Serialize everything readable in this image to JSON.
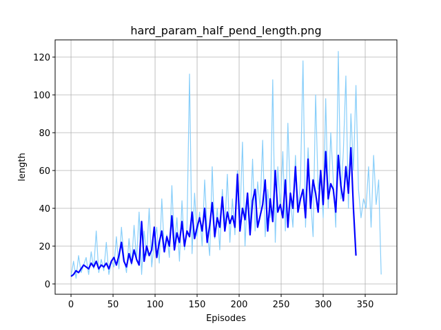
{
  "chart_data": {
    "type": "line",
    "title": "hard_param_half_pend_length.png",
    "x_label": "Episodes",
    "y_label": "length",
    "xlim": [
      -18.9,
      387.7
    ],
    "ylim": [
      -5.45,
      129.1
    ],
    "xticks": [
      0,
      50,
      100,
      150,
      200,
      250,
      300,
      350
    ],
    "yticks": [
      0,
      20,
      40,
      60,
      80,
      100,
      120
    ],
    "grid": true,
    "series": [
      {
        "color": "#87cefa",
        "width": 1.2,
        "x": [
          0,
          3,
          6,
          9,
          12,
          15,
          18,
          21,
          24,
          27,
          30,
          33,
          36,
          39,
          42,
          45,
          48,
          51,
          54,
          57,
          60,
          63,
          66,
          69,
          72,
          75,
          78,
          81,
          84,
          87,
          90,
          93,
          96,
          99,
          102,
          105,
          108,
          111,
          114,
          117,
          120,
          123,
          126,
          129,
          132,
          135,
          138,
          141,
          144,
          147,
          150,
          153,
          156,
          159,
          162,
          165,
          168,
          171,
          174,
          177,
          180,
          183,
          186,
          189,
          192,
          195,
          198,
          201,
          204,
          207,
          210,
          213,
          216,
          219,
          222,
          225,
          228,
          231,
          234,
          237,
          240,
          243,
          246,
          249,
          252,
          255,
          258,
          261,
          264,
          267,
          270,
          273,
          276,
          279,
          282,
          285,
          288,
          291,
          294,
          297,
          300,
          303,
          306,
          309,
          312,
          315,
          318,
          321,
          324,
          327,
          330,
          333,
          336,
          339,
          342,
          345,
          348,
          351,
          354,
          357,
          360,
          363,
          366,
          369
        ],
        "values": [
          4,
          12,
          3,
          15,
          6,
          10,
          14,
          5,
          17,
          8,
          28,
          6,
          13,
          7,
          22,
          5,
          12,
          9,
          25,
          8,
          30,
          14,
          6,
          24,
          10,
          31,
          12,
          38,
          5,
          28,
          15,
          40,
          9,
          22,
          30,
          11,
          45,
          18,
          26,
          14,
          52,
          20,
          35,
          12,
          44,
          18,
          30,
          111,
          16,
          48,
          25,
          38,
          20,
          55,
          28,
          15,
          62,
          24,
          40,
          18,
          50,
          30,
          58,
          22,
          45,
          26,
          60,
          35,
          75,
          20,
          48,
          30,
          66,
          28,
          54,
          40,
          76,
          25,
          50,
          35,
          108,
          22,
          62,
          40,
          70,
          28,
          85,
          45,
          30,
          68,
          38,
          55,
          118,
          30,
          72,
          45,
          25,
          100,
          50,
          60,
          35,
          98,
          40,
          80,
          55,
          30,
          123,
          45,
          70,
          110,
          40,
          90,
          60,
          105,
          50,
          35,
          45,
          40,
          62,
          30,
          68,
          42,
          55,
          5
        ]
      },
      {
        "color": "#0000ff",
        "width": 2.2,
        "x": [
          0,
          3,
          6,
          9,
          12,
          15,
          18,
          21,
          24,
          27,
          30,
          33,
          36,
          39,
          42,
          45,
          48,
          51,
          54,
          57,
          60,
          63,
          66,
          69,
          72,
          75,
          78,
          81,
          84,
          87,
          90,
          93,
          96,
          99,
          102,
          105,
          108,
          111,
          114,
          117,
          120,
          123,
          126,
          129,
          132,
          135,
          138,
          141,
          144,
          147,
          150,
          153,
          156,
          159,
          162,
          165,
          168,
          171,
          174,
          177,
          180,
          183,
          186,
          189,
          192,
          195,
          198,
          201,
          204,
          207,
          210,
          213,
          216,
          219,
          222,
          225,
          228,
          231,
          234,
          237,
          240,
          243,
          246,
          249,
          252,
          255,
          258,
          261,
          264,
          267,
          270,
          273,
          276,
          279,
          282,
          285,
          288,
          291,
          294,
          297,
          300,
          303,
          306,
          309,
          312,
          315,
          318,
          321,
          324,
          327,
          330,
          333,
          336,
          339
        ],
        "values": [
          4,
          5,
          7,
          6,
          8,
          10,
          9,
          8,
          11,
          9,
          12,
          8,
          10,
          9,
          11,
          8,
          12,
          14,
          10,
          15,
          22,
          12,
          9,
          16,
          11,
          18,
          13,
          10,
          33,
          12,
          20,
          15,
          18,
          30,
          14,
          22,
          28,
          17,
          25,
          20,
          36,
          18,
          27,
          22,
          33,
          20,
          28,
          25,
          38,
          24,
          30,
          35,
          28,
          40,
          22,
          31,
          43,
          25,
          35,
          30,
          46,
          28,
          38,
          32,
          36,
          30,
          58,
          28,
          40,
          34,
          48,
          26,
          44,
          50,
          30,
          36,
          42,
          55,
          28,
          45,
          33,
          60,
          38,
          42,
          35,
          55,
          30,
          48,
          40,
          62,
          38,
          45,
          50,
          35,
          66,
          40,
          55,
          48,
          38,
          60,
          42,
          70,
          45,
          53,
          50,
          38,
          68,
          52,
          44,
          62,
          48,
          72,
          40,
          15
        ]
      }
    ]
  }
}
